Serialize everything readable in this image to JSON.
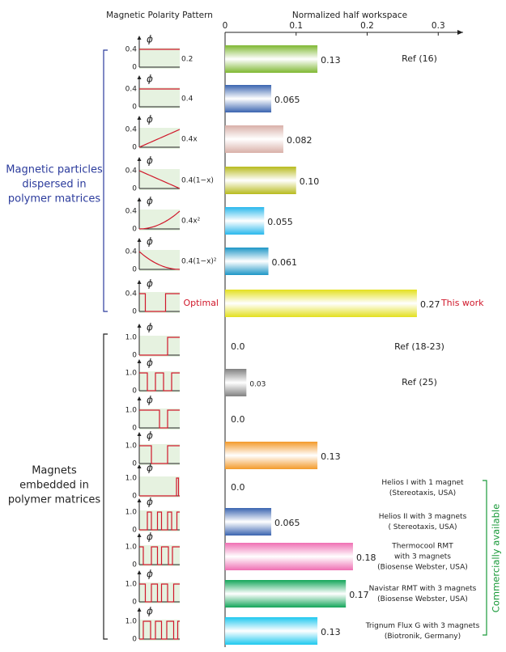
{
  "chart_data": {
    "type": "bar",
    "orientation": "horizontal",
    "x_label": "Normalized half workspace",
    "inset_title": "Magnetic Polarity Pattern",
    "xlim": [
      0,
      0.335
    ],
    "xticks": [
      0,
      0.1,
      0.2,
      0.3
    ],
    "values": [
      0.13,
      0.065,
      0.082,
      0.1,
      0.055,
      0.061,
      0.27,
      0,
      0.03,
      0,
      0.13,
      0,
      0.065,
      0.18,
      0.17,
      0.13
    ],
    "value_labels": [
      "0.13",
      "0.065",
      "0.082",
      "0.10",
      "0.055",
      "0.061",
      "0.27",
      "0.0",
      "0.03",
      "0.0",
      "0.13",
      "0.0",
      "0.065",
      "0.18",
      "0.17",
      "0.13"
    ],
    "colors": [
      "#7fb832",
      "#3a64b0",
      "#d9b0a8",
      "#b8bb1e",
      "#29b8ec",
      "#1d96c6",
      "#e3e01e",
      null,
      "#808080",
      null,
      "#f39a2a",
      null,
      "#3a64b0",
      "#ef6fb3",
      "#14a65a",
      "#1ec8ef"
    ],
    "notes": [
      [
        "Ref (16)"
      ],
      null,
      null,
      null,
      null,
      null,
      [
        "This work"
      ],
      [
        "Ref (18-23)"
      ],
      [
        "Ref (25)"
      ],
      null,
      null,
      [
        "Helios I with 1 magnet",
        "(Stereotaxis, USA)"
      ],
      [
        "Helios II with 3 magnets",
        "( Stereotaxis, USA)"
      ],
      [
        "Thermocool RMT",
        "with 3 magnets",
        "(Biosense Webster, USA)"
      ],
      [
        "Navistar RMT with 3 magnets",
        "(Biosense Webster, USA)"
      ],
      [
        "Trignum Flux G with 3 magnets",
        "(Biotronik, Germany)"
      ]
    ],
    "left_note": "Optimal",
    "inset_axis_label": "ϕ",
    "inset_zero": 0,
    "insets": [
      {
        "top": 0.4,
        "label": "0.2"
      },
      {
        "top": 0.4,
        "label": "0.4"
      },
      {
        "top": 0.4,
        "label": "0.4x"
      },
      {
        "top": 0.4,
        "label": "0.4(1−x)"
      },
      {
        "top": 0.4,
        "label": "0.4x²"
      },
      {
        "top": 0.4,
        "label": "0.4(1−x)²"
      },
      {
        "top": 0.4,
        "label": null
      },
      {
        "top": {
          "value": 1,
          "label": "1.0"
        },
        "label": null
      },
      {
        "top": {
          "value": 1,
          "label": "1.0"
        },
        "label": null
      },
      {
        "top": {
          "value": 1,
          "label": "1.0"
        },
        "label": null
      },
      {
        "top": {
          "value": 1,
          "label": "1.0"
        },
        "label": null
      },
      {
        "top": {
          "value": 1,
          "label": "1.0"
        },
        "label": null
      },
      {
        "top": {
          "value": 1,
          "label": "1.0"
        },
        "label": null
      },
      {
        "top": {
          "value": 1,
          "label": "1.0"
        },
        "label": null
      },
      {
        "top": {
          "value": 1,
          "label": "1.0"
        },
        "label": null
      },
      {
        "top": {
          "value": 1,
          "label": "1.0"
        },
        "label": null
      }
    ],
    "groups": [
      [
        "Magnetic particles",
        "dispersed in",
        "polymer matrices"
      ],
      [
        "Magnets",
        "embedded in",
        "polymer matrices"
      ]
    ],
    "commercial_label": "Commercially available"
  }
}
